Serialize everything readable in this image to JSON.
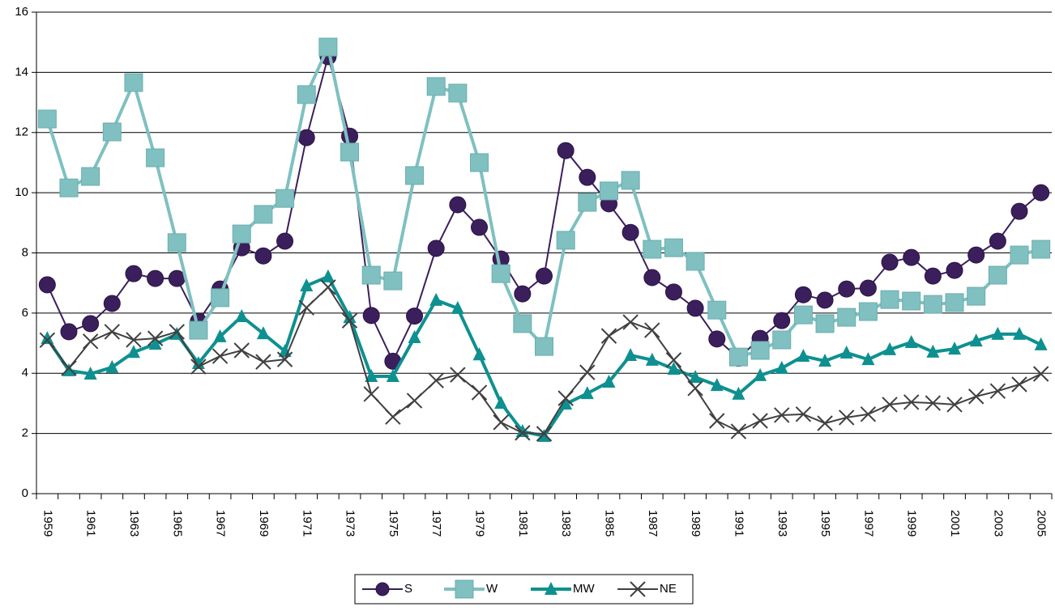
{
  "chart_data": {
    "type": "line",
    "categories": [
      "1959",
      null,
      "1961",
      null,
      "1963",
      null,
      "1965",
      null,
      "1967",
      null,
      "1969",
      null,
      "1971",
      null,
      "1973",
      null,
      "1975",
      null,
      "1977",
      null,
      "1979",
      null,
      "1981",
      null,
      "1983",
      null,
      "1985",
      null,
      "1987",
      null,
      "1989",
      null,
      "1991",
      null,
      "1993",
      null,
      "1995",
      null,
      "1997",
      null,
      "1999",
      null,
      "2001",
      null,
      "2003",
      null,
      "2005"
    ],
    "ylim": [
      0,
      16
    ],
    "yticks": [
      0,
      2,
      4,
      6,
      8,
      10,
      12,
      14,
      16
    ],
    "grid": true,
    "legend": "bottom",
    "series": [
      {
        "name": "S",
        "color": "#3b1f5c",
        "marker": "circle",
        "values": [
          6.94,
          5.38,
          5.65,
          6.32,
          7.31,
          7.15,
          7.15,
          5.73,
          6.8,
          8.17,
          7.9,
          8.39,
          11.83,
          14.52,
          11.88,
          5.92,
          4.4,
          5.9,
          8.15,
          9.6,
          8.85,
          7.8,
          6.64,
          7.23,
          11.4,
          10.51,
          9.63,
          8.68,
          7.18,
          6.7,
          6.16,
          5.14,
          4.5,
          5.16,
          5.75,
          6.61,
          6.43,
          6.8,
          6.83,
          7.69,
          7.85,
          7.23,
          7.42,
          7.93,
          8.39,
          9.38,
          10.0
        ]
      },
      {
        "name": "W",
        "color": "#80c0c0",
        "marker": "square",
        "values": [
          12.45,
          10.16,
          10.54,
          12.02,
          13.66,
          11.16,
          8.34,
          5.43,
          6.51,
          8.63,
          9.28,
          9.81,
          13.26,
          14.84,
          11.35,
          7.26,
          7.07,
          10.57,
          13.53,
          13.31,
          11.0,
          7.31,
          5.65,
          4.89,
          8.42,
          9.68,
          10.06,
          10.41,
          8.12,
          8.17,
          7.72,
          6.1,
          4.54,
          4.76,
          5.11,
          5.94,
          5.65,
          5.86,
          6.05,
          6.45,
          6.4,
          6.29,
          6.35,
          6.56,
          7.26,
          7.93,
          8.12
        ]
      },
      {
        "name": "MW",
        "color": "#0e9090",
        "marker": "triangle",
        "values": [
          5.16,
          4.09,
          3.98,
          4.2,
          4.7,
          4.97,
          5.3,
          4.33,
          5.22,
          5.89,
          5.32,
          4.73,
          6.91,
          7.21,
          5.86,
          3.9,
          3.9,
          5.19,
          6.43,
          6.16,
          4.62,
          3.01,
          2.07,
          1.91,
          2.98,
          3.33,
          3.71,
          4.6,
          4.44,
          4.14,
          3.87,
          3.6,
          3.31,
          3.93,
          4.17,
          4.57,
          4.41,
          4.68,
          4.46,
          4.79,
          5.03,
          4.71,
          4.81,
          5.08,
          5.3,
          5.3,
          4.95
        ]
      },
      {
        "name": "NE",
        "color": "#404040",
        "marker": "x",
        "values": [
          5.1,
          4.17,
          5.06,
          5.38,
          5.11,
          5.16,
          5.38,
          4.22,
          4.57,
          4.76,
          4.38,
          4.46,
          6.18,
          6.86,
          5.75,
          3.31,
          2.55,
          3.09,
          3.76,
          3.95,
          3.36,
          2.37,
          2.02,
          1.99,
          3.17,
          4.03,
          5.24,
          5.7,
          5.43,
          4.44,
          3.5,
          2.42,
          2.07,
          2.42,
          2.61,
          2.64,
          2.34,
          2.53,
          2.64,
          2.96,
          3.04,
          3.01,
          2.96,
          3.23,
          3.41,
          3.63,
          3.98
        ]
      }
    ]
  }
}
